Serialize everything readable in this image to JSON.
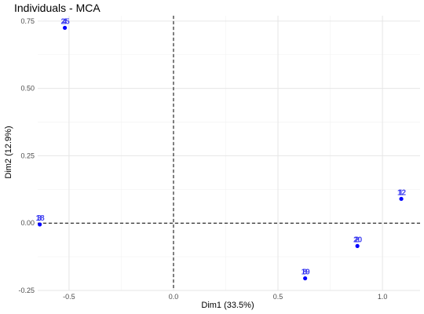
{
  "chart_data": {
    "type": "scatter",
    "title": "Individuals - MCA",
    "xlabel": "Dim1 (33.5%)",
    "ylabel": "Dim2 (12.9%)",
    "xlim": [
      -0.65,
      1.18
    ],
    "ylim": [
      -0.25,
      0.77
    ],
    "x_ticks": [
      {
        "value": -0.5,
        "label": "-0.5"
      },
      {
        "value": 0.0,
        "label": "0.0"
      },
      {
        "value": 0.5,
        "label": "0.5"
      },
      {
        "value": 1.0,
        "label": "1.0"
      }
    ],
    "y_ticks": [
      {
        "value": -0.25,
        "label": "-0.25"
      },
      {
        "value": 0.0,
        "label": "0.00"
      },
      {
        "value": 0.25,
        "label": "0.25"
      },
      {
        "value": 0.5,
        "label": "0.50"
      },
      {
        "value": 0.75,
        "label": "0.75"
      }
    ],
    "grid": true,
    "reference_lines": {
      "x": 0,
      "y": 0,
      "style": "dashed"
    },
    "point_color": "#0000ff",
    "label_color": "#2222ee",
    "points": [
      {
        "x": -0.52,
        "y": 0.725,
        "labels": [
          "4",
          "25"
        ]
      },
      {
        "x": -0.64,
        "y": -0.005,
        "labels": [
          "3",
          "18"
        ]
      },
      {
        "x": 1.09,
        "y": 0.09,
        "labels": [
          "1",
          "12"
        ]
      },
      {
        "x": 0.88,
        "y": -0.085,
        "labels": [
          "2",
          "20"
        ]
      },
      {
        "x": 0.63,
        "y": -0.205,
        "labels": [
          "8",
          "19"
        ]
      }
    ]
  }
}
